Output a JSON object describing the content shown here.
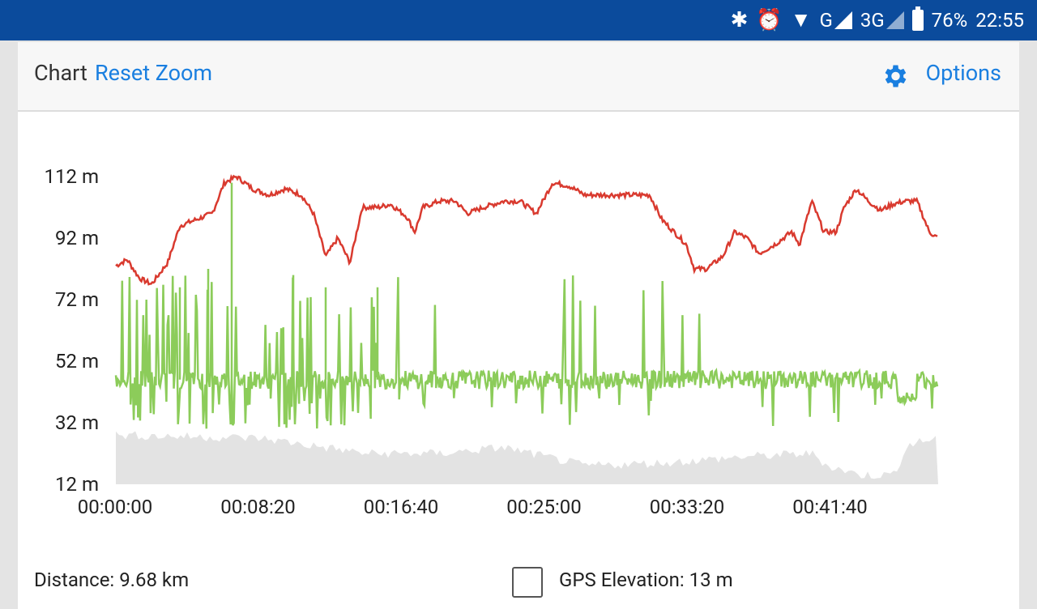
{
  "status_bar": {
    "icons": [
      "bluetooth-icon",
      "alarm-icon",
      "wifi-icon",
      "signal-icon",
      "signal-icon",
      "battery-icon"
    ],
    "net1": "G",
    "net2": "3G",
    "battery": "76%",
    "time": "22:55"
  },
  "toolbar": {
    "title": "Chart",
    "reset_zoom": "Reset Zoom",
    "options": "Options",
    "accent": "#1a7fe0"
  },
  "chart_data": {
    "type": "line",
    "y_ticks": [
      "112 m",
      "92 m",
      "72 m",
      "52 m",
      "32 m",
      "12 m"
    ],
    "x_ticks": [
      "00:00:00",
      "00:08:20",
      "00:16:40",
      "00:25:00",
      "00:33:20",
      "00:41:40"
    ],
    "ylim": [
      12,
      112
    ],
    "series": [
      {
        "color": "#d93a2f"
      },
      {
        "color": "#8ccc5a"
      },
      {
        "color": "#e3e3e3"
      }
    ]
  },
  "footer": {
    "distance": "Distance: 9.68 km",
    "gps_elevation": "GPS Elevation: 13 m"
  }
}
